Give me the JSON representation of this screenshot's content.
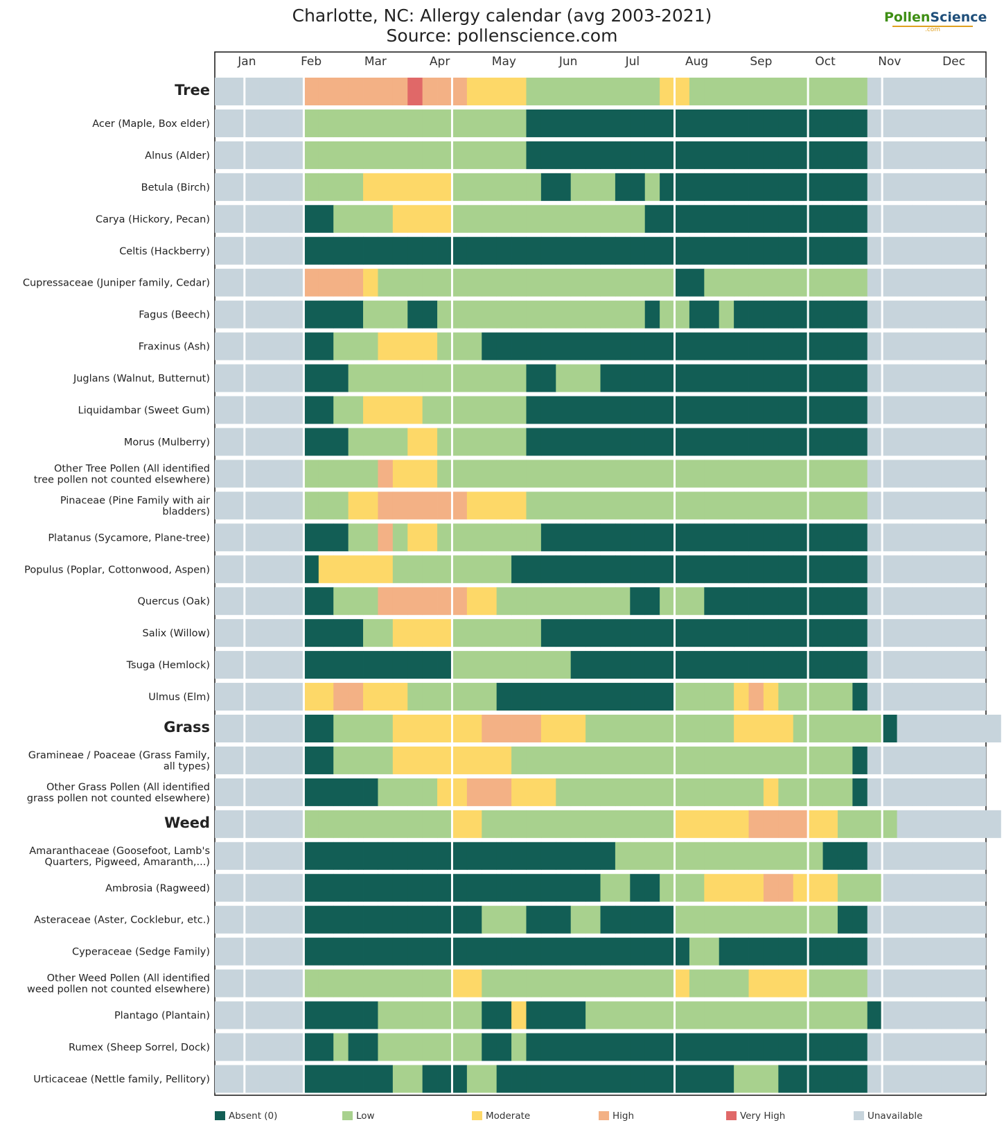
{
  "title": "Charlotte, NC: Allergy calendar (avg 2003-2021)",
  "subtitle": "Source: pollenscience.com",
  "logo": {
    "part1": "Pollen",
    "part2": "Science",
    "domain": ".com"
  },
  "colors": {
    "absent": "#125e55",
    "low": "#a8d18e",
    "moderate": "#fdd868",
    "high": "#f3b185",
    "very_high": "#e06868",
    "unavailable": "#c7d4dc"
  },
  "chart_data": {
    "type": "heatmap",
    "title": "Charlotte, NC: Allergy calendar (avg 2003-2021)",
    "subtitle": "Source: pollenscience.com",
    "x_unit": "week of year (1-52)",
    "months": [
      "Jan",
      "Feb",
      "Mar",
      "Apr",
      "May",
      "Jun",
      "Jul",
      "Aug",
      "Sep",
      "Oct",
      "Nov",
      "Dec"
    ],
    "legend": [
      {
        "level": "A",
        "label": "Absent (0)"
      },
      {
        "level": "L",
        "label": "Low"
      },
      {
        "level": "M",
        "label": "Moderate"
      },
      {
        "level": "H",
        "label": "High"
      },
      {
        "level": "V",
        "label": "Very High"
      },
      {
        "level": "U",
        "label": "Unavailable"
      }
    ],
    "level_codes": {
      "A": "Absent (0)",
      "L": "Low",
      "M": "Moderate",
      "H": "High",
      "V": "Very High",
      "U": "Unavailable"
    },
    "rows": [
      {
        "label": "Tree",
        "group": true,
        "weeks": "UUUUUUHHHHHHHVHHHMMMMLLLLLLLLLMMLLLLLLLLLLLLUUUUUUUU"
      },
      {
        "label": "Acer (Maple, Box elder)",
        "weeks": "UUUUUULLLLLLLLLLLLLLLAAAAAAAAAAAAAAAAAAAAAAAUUUUUUUU"
      },
      {
        "label": "Alnus (Alder)",
        "weeks": "UUUUUULLLLLLLLLLLLLLLAAAAAAAAAAAAAAAAAAAAAAAUUUUUUUU"
      },
      {
        "label": "Betula (Birch)",
        "weeks": "UUUUUULLLLMMMMMMLLLLLLAALLLAALAAAAAAAAAAAAAAUUUUUUUU"
      },
      {
        "label": "Carya (Hickory, Pecan)",
        "weeks": "UUUUUUAALLLLMMMMLLLLLLLLLLLLLAAAAAAAAAAAAAAAUUUUUUUU"
      },
      {
        "label": "Celtis (Hackberry)",
        "weeks": "UUUUUUAAAAAAAAAAAAAAAAAAAAAAAAAAAAAAAAAAAAAAUUUUUUUU"
      },
      {
        "label": "Cupressaceae (Juniper family, Cedar)",
        "weeks": "UUUUUUHHHHMLLLLLLLLLLLLLLLLLLLLAALLLLLLLLLLLUUUUUUUU"
      },
      {
        "label": "Fagus (Beech)",
        "weeks": "UUUUUUAAAALLLAALLLLLLLLLLLLLLALLAALAAAAAAAAAUUUUUUUU"
      },
      {
        "label": "Fraxinus (Ash)",
        "weeks": "UUUUUUAALLLMMMMLLLAAAAAAAAAAAAAAAAAAAAAAAAAAUUUUUUUU"
      },
      {
        "label": "Juglans (Walnut, Butternut)",
        "weeks": "UUUUUUAAALLLLLLLLLLLLAALLLAAAAAAAAAAAAAAAAAAUUUUUUUU"
      },
      {
        "label": "Liquidambar (Sweet Gum)",
        "weeks": "UUUUUUAALLMMMMLLLLLLLAAAAAAAAAAAAAAAAAAAAAAAUUUUUUUU"
      },
      {
        "label": "Morus (Mulberry)",
        "weeks": "UUUUUUAAALLLLMMLLLLLLAAAAAAAAAAAAAAAAAAAAAAAUUUUUUUU"
      },
      {
        "label": "Other Tree Pollen (All identified tree pollen not counted elsewhere)",
        "weeks": "UUUUUULLLLLHMMMLLLLLLLLLLLLLLLLLLLLLLLLLLLLLUUUUUUUU"
      },
      {
        "label": "Pinaceae (Pine Family with air bladders)",
        "weeks": "UUUUUULLLMMHHHHHHMMMMLLLLLLLLLLLLLLLLLLLLLLLUUUUUUUU"
      },
      {
        "label": "Platanus (Sycamore, Plane-tree)",
        "weeks": "UUUUUUAAALLHLMMLLLLLLLAAAAAAAAAAAAAAAAAAAAAAUUUUUUUU"
      },
      {
        "label": "Populus (Poplar, Cottonwood, Aspen)",
        "weeks": "UUUUUUAMMMMMLLLLLLLLAAAAAAAAAAAAAAAAAAAAAAAAUUUUUUUU"
      },
      {
        "label": "Quercus (Oak)",
        "weeks": "UUUUUUAALLLHHHHHHMMLLLLLLLLLAALLLAAAAAAAAAAAUUUUUUUU"
      },
      {
        "label": "Salix (Willow)",
        "weeks": "UUUUUUAAAALLMMMMLLLLLLAAAAAAAAAAAAAAAAAAAAAAUUUUUUUU"
      },
      {
        "label": "Tsuga (Hemlock)",
        "weeks": "UUUUUUAAAAAAAAAALLLLLLLLAAAAAAAAAAAAAAAAAAAAUUUUUUUU"
      },
      {
        "label": "Ulmus (Elm)",
        "weeks": "UUUUUUMMHHMMMLLLLLLAAAAAAAAAAAALLLLMHMLLLLLAUUUUUUUU"
      },
      {
        "label": "Grass",
        "group": true,
        "weeks": "UUUUUUAALLLLMMMMMMHHHHMMMLLLLLLLLLLMMMMLLLLLLAUUUUUUU"
      },
      {
        "label": "Gramineae / Poaceae (Grass Family, all types)",
        "weeks": "UUUUUUAALLLLMMMMMMMMLLLLLLLLLLLLLLLLLLLLLLLAUUUUUUUU"
      },
      {
        "label": "Other Grass Pollen (All identified grass pollen not counted elsewhere)",
        "weeks": "UUUUUUAAAAALLLLMMHHHMMMLLLLLLLLLLLLLLMLLLLLAUUUUUUUU"
      },
      {
        "label": "Weed",
        "group": true,
        "weeks": "UUUUUULLLLLLLLLLMMLLLLLLLLLLLLLMMMMMHHHHMMLLLLUUUUUUU"
      },
      {
        "label": "Amaranthaceae (Goosefoot, Lamb's Quarters, Pigweed, Amaranth,...)",
        "weeks": "UUUUUUAAAAAAAAAAAAAAAAAAAAALLLLLLLLLLLLLLAAAUUUUUUUU"
      },
      {
        "label": "Ambrosia (Ragweed)",
        "weeks": "UUUUUUAAAAAAAAAAAAAAAAAAAALLAALLLMMMMHHMMMLLLUUUUUUU"
      },
      {
        "label": "Asteraceae (Aster, Cocklebur, etc.)",
        "weeks": "UUUUUUAAAAAAAAAAAALLLAAALLAAAAALLLLLLLLLLLAAUUUUUUUU"
      },
      {
        "label": "Cyperaceae (Sedge Family)",
        "weeks": "UUUUUUAAAAAAAAAAAAAAAAAAAAAAAAAALLAAAAAAAAAAUUUUUUUU"
      },
      {
        "label": "Other Weed Pollen (All identified weed pollen not counted elsewhere)",
        "weeks": "UUUUUULLLLLLLLLLMMLLLLLLLLLLLLLMLLLLMMMMLLLLUUUUUUUU"
      },
      {
        "label": "Plantago (Plantain)",
        "weeks": "UUUUUUAAAAALLLLLLLAAMAAAALLLLLLLLLLLLLLLLLLLAUUUUUUU"
      },
      {
        "label": "Rumex (Sheep Sorrel, Dock)",
        "weeks": "UUUUUUAALAALLLLLLLAALAAAAAAAAAAAAAAAAAAAAAAAUUUUUUUU"
      },
      {
        "label": "Urticaceae (Nettle family, Pellitory)",
        "weeks": "UUUUUUAAAAAALLAAALLAAAAAAAAAAAAAAAALLLAAAAAAUUUUUUUU"
      }
    ]
  }
}
